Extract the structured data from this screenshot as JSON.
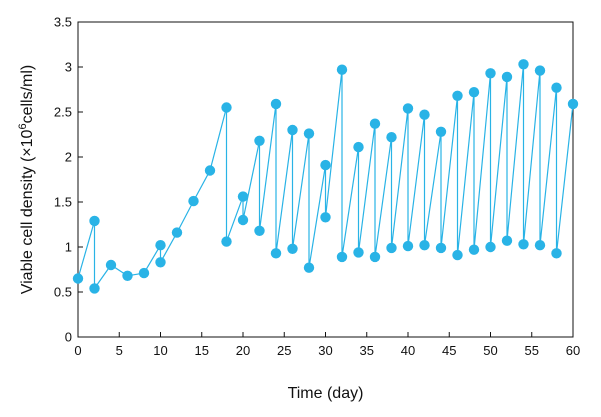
{
  "chart_data": {
    "type": "line",
    "title": "",
    "xlabel": "Time (day)",
    "ylabel_parts": {
      "prefix": "Viable cell density (×10",
      "sup": "6",
      "suffix": "cells/ml)"
    },
    "xlim": [
      0,
      60
    ],
    "ylim": [
      0,
      3.5
    ],
    "xticks": [
      0,
      5,
      10,
      15,
      20,
      25,
      30,
      35,
      40,
      45,
      50,
      55,
      60
    ],
    "yticks": [
      0,
      0.5,
      1,
      1.5,
      2,
      2.5,
      3,
      3.5
    ],
    "grid": false,
    "legend": "none",
    "series": [
      {
        "color": "#29b3e6",
        "x": [
          0,
          2,
          2,
          4,
          6,
          8,
          10,
          10,
          12,
          14,
          16,
          18,
          18,
          20,
          20,
          22,
          22,
          24,
          24,
          26,
          26,
          28,
          28,
          30,
          30,
          32,
          32,
          34,
          34,
          36,
          36,
          38,
          38,
          40,
          40,
          42,
          42,
          44,
          44,
          46,
          46,
          48,
          48,
          50,
          50,
          52,
          52,
          54,
          54,
          56,
          56,
          58,
          58,
          60
        ],
        "y": [
          0.65,
          1.29,
          0.54,
          0.8,
          0.68,
          0.71,
          1.02,
          0.83,
          1.16,
          1.51,
          1.85,
          2.55,
          1.06,
          1.56,
          1.3,
          2.18,
          1.18,
          2.59,
          0.93,
          2.3,
          0.98,
          2.26,
          0.77,
          1.91,
          1.33,
          2.97,
          0.89,
          2.11,
          0.94,
          2.37,
          0.89,
          2.22,
          0.99,
          2.54,
          1.01,
          2.47,
          1.02,
          2.28,
          0.99,
          2.68,
          0.91,
          2.72,
          0.97,
          2.93,
          1.0,
          2.89,
          1.07,
          3.03,
          1.03,
          2.96,
          1.02,
          2.77,
          0.93,
          2.59
        ]
      }
    ]
  }
}
